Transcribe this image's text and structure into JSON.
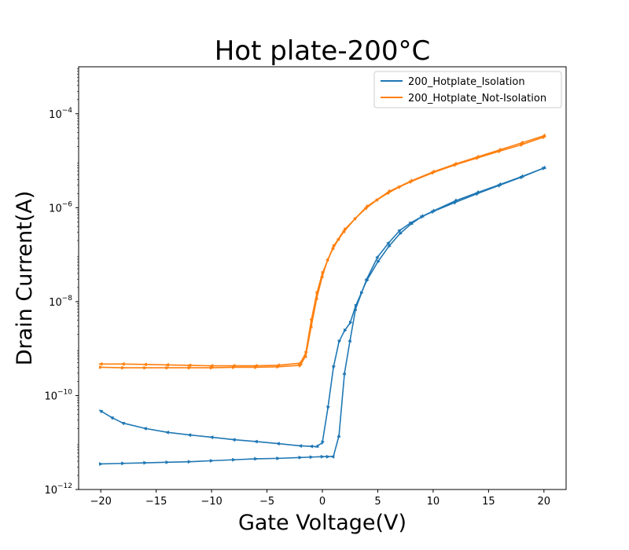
{
  "chart_data": {
    "type": "line",
    "title": "Hot plate-200°C",
    "xlabel": "Gate Voltage(V)",
    "ylabel": "Drain Current(A)",
    "xlim": [
      -22,
      22
    ],
    "ylim": [
      1e-12,
      0.001
    ],
    "yscale": "log",
    "grid": false,
    "legend_position": "top-right",
    "x_ticks": [
      -20,
      -15,
      -10,
      -5,
      0,
      5,
      10,
      15,
      20
    ],
    "x_tick_labels": [
      "−20",
      "−15",
      "−10",
      "−5",
      "0",
      "5",
      "10",
      "15",
      "20"
    ],
    "y_ticks": [
      {
        "value": 1e-12,
        "base": "10",
        "exp": "−12"
      },
      {
        "value": 1e-10,
        "base": "10",
        "exp": "−10"
      },
      {
        "value": 1e-08,
        "base": "10",
        "exp": "−8"
      },
      {
        "value": 1e-06,
        "base": "10",
        "exp": "−6"
      },
      {
        "value": 0.0001,
        "base": "10",
        "exp": "−4"
      }
    ],
    "series": [
      {
        "name": "200_Hotplate_Isolation",
        "color": "#1f77b4",
        "segments": [
          {
            "x": [
              -20,
              -18,
              -16,
              -14,
              -12,
              -10,
              -8,
              -6,
              -4,
              -2,
              -1,
              0,
              0.5,
              1,
              1.5,
              2,
              2.5,
              3,
              4,
              5,
              6,
              7,
              8,
              9,
              10,
              12,
              14,
              16,
              18,
              20
            ],
            "y": [
              3.5e-12,
              3.6e-12,
              3.7e-12,
              3.8e-12,
              3.9e-12,
              4.1e-12,
              4.3e-12,
              4.5e-12,
              4.6e-12,
              4.8e-12,
              4.9e-12,
              5e-12,
              5e-12,
              5.1e-12,
              1.4e-11,
              3e-10,
              1.5e-09,
              7e-09,
              3e-08,
              9e-08,
              1.8e-07,
              3.3e-07,
              4.8e-07,
              6.5e-07,
              8.3e-07,
              1.3e-06,
              2e-06,
              3e-06,
              4.5e-06,
              7e-06
            ]
          },
          {
            "x": [
              20,
              18,
              16,
              14,
              12,
              10,
              9,
              8,
              7,
              6,
              5,
              4,
              3.5,
              3,
              2.5,
              2,
              1.5,
              1,
              0.5,
              0,
              -0.5,
              -1,
              -2,
              -4,
              -6,
              -8,
              -10,
              -12,
              -14,
              -16,
              -18,
              -19,
              -20
            ],
            "y": [
              7e-06,
              4.6e-06,
              3.1e-06,
              2.1e-06,
              1.4e-06,
              8.5e-07,
              6.5e-07,
              4.5e-07,
              2.8e-07,
              1.5e-07,
              7e-08,
              2.8e-08,
              1.5e-08,
              8e-09,
              3.5e-09,
              2.4e-09,
              1.4e-09,
              4e-10,
              5.5e-11,
              1e-11,
              8.2e-12,
              8.3e-12,
              8.5e-12,
              9.5e-12,
              1.05e-11,
              1.15e-11,
              1.3e-11,
              1.45e-11,
              1.65e-11,
              2e-11,
              2.6e-11,
              3.4e-11,
              4.7e-11
            ]
          }
        ]
      },
      {
        "name": "200_Hotplate_Not-Isolation",
        "color": "#ff7f0e",
        "segments": [
          {
            "x": [
              -20,
              -18,
              -16,
              -14,
              -12,
              -10,
              -8,
              -6,
              -4,
              -2,
              -1.5,
              -1,
              -0.5,
              0,
              0.5,
              1,
              1.5,
              2,
              3,
              4,
              5,
              6,
              7,
              8,
              10,
              12,
              14,
              16,
              18,
              20
            ],
            "y": [
              4e-10,
              3.9e-10,
              3.9e-10,
              3.9e-10,
              3.9e-10,
              3.9e-10,
              4e-10,
              4e-10,
              4.1e-10,
              4.4e-10,
              7e-10,
              3e-09,
              1.2e-08,
              3.5e-08,
              8e-08,
              1.4e-07,
              2.2e-07,
              3.2e-07,
              6e-07,
              1e-06,
              1.5e-06,
              2.1e-06,
              2.8e-06,
              3.6e-06,
              5.6e-06,
              8.2e-06,
              1.15e-05,
              1.6e-05,
              2.2e-05,
              3.2e-05
            ]
          },
          {
            "x": [
              20,
              18,
              16,
              14,
              12,
              10,
              8,
              6,
              4,
              2,
              1,
              0,
              -0.5,
              -1,
              -1.5,
              -2,
              -4,
              -6,
              -8,
              -10,
              -12,
              -14,
              -16,
              -18,
              -20
            ],
            "y": [
              3.4e-05,
              2.4e-05,
              1.7e-05,
              1.2e-05,
              8.5e-06,
              5.8e-06,
              3.7e-06,
              2.2e-06,
              1.05e-06,
              3.4e-07,
              1.5e-07,
              4e-08,
              1.5e-08,
              4e-09,
              8e-10,
              4.9e-10,
              4.4e-10,
              4.3e-10,
              4.3e-10,
              4.3e-10,
              4.4e-10,
              4.5e-10,
              4.6e-10,
              4.7e-10,
              4.7e-10
            ]
          }
        ]
      }
    ]
  }
}
